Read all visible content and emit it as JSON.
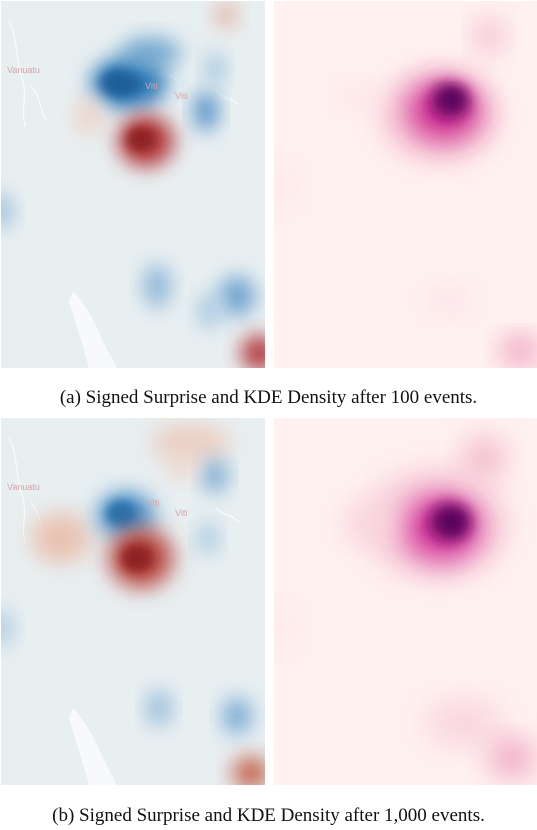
{
  "figure": {
    "row_a": {
      "caption": "(a) Signed Surprise and KDE Density after 100 events.",
      "surprise_map": {
        "place_labels": [
          "Vanuatu",
          "Viti",
          "Viti"
        ]
      }
    },
    "row_b": {
      "caption": "(b) Signed Surprise and KDE Density after 1,000 events.",
      "surprise_map": {
        "place_labels": [
          "Vanuatu",
          "Viti",
          "Viti"
        ]
      }
    }
  },
  "colors": {
    "surprise_background": "#e8eff1",
    "surprise_positive": "#b2393b",
    "surprise_negative": "#2f7ab8",
    "density_background": "#fff1ef",
    "density_peak": "#4a0259",
    "density_mid": "#d02f92"
  }
}
